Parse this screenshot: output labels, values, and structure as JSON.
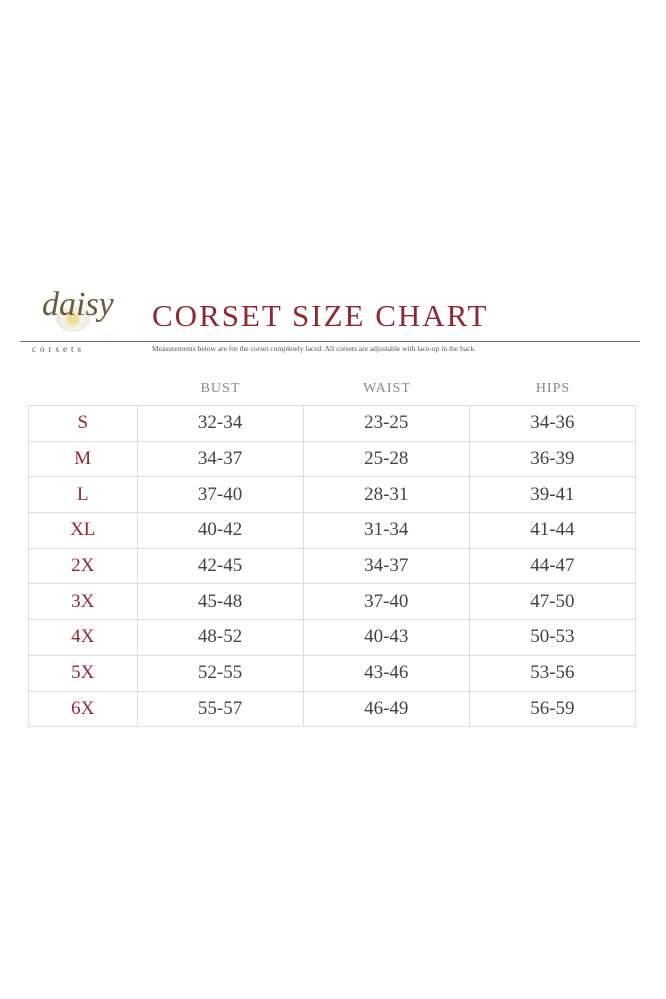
{
  "brand": {
    "logo_script": "daisy",
    "logo_sub": "corsets"
  },
  "title": "CORSET SIZE CHART",
  "subtitle": "Measurements below are for the corset completely laced.  All corsets are adjustable with lace-up in the back.",
  "colors": {
    "accent": "#8e2a34",
    "text": "#444444",
    "grid": "#dddddd"
  },
  "headers": [
    "BUST",
    "WAIST",
    "HIPS"
  ],
  "rows": [
    {
      "size": "S",
      "bust": "32-34",
      "waist": "23-25",
      "hips": "34-36"
    },
    {
      "size": "M",
      "bust": "34-37",
      "waist": "25-28",
      "hips": "36-39"
    },
    {
      "size": "L",
      "bust": "37-40",
      "waist": "28-31",
      "hips": "39-41"
    },
    {
      "size": "XL",
      "bust": "40-42",
      "waist": "31-34",
      "hips": "41-44"
    },
    {
      "size": "2X",
      "bust": "42-45",
      "waist": "34-37",
      "hips": "44-47"
    },
    {
      "size": "3X",
      "bust": "45-48",
      "waist": "37-40",
      "hips": "47-50"
    },
    {
      "size": "4X",
      "bust": "48-52",
      "waist": "40-43",
      "hips": "50-53"
    },
    {
      "size": "5X",
      "bust": "52-55",
      "waist": "43-46",
      "hips": "53-56"
    },
    {
      "size": "6X",
      "bust": "55-57",
      "waist": "46-49",
      "hips": "56-59"
    }
  ]
}
